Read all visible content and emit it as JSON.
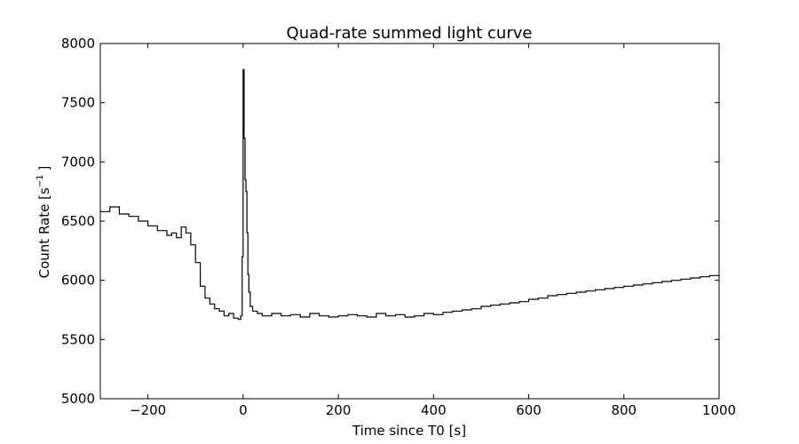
{
  "chart_data": {
    "type": "line",
    "title": "Quad-rate summed light curve",
    "xlabel": "Time since T0 [s]",
    "ylabel_prefix": "Count Rate [s",
    "ylabel_exponent": "−1",
    "ylabel_suffix": "]",
    "xlim": [
      -300,
      1000
    ],
    "ylim": [
      5000,
      8000
    ],
    "x_ticks": [
      -200,
      0,
      200,
      400,
      600,
      800,
      1000
    ],
    "x_tick_labels": [
      "−200",
      "0",
      "200",
      "400",
      "600",
      "800",
      "1000"
    ],
    "y_ticks": [
      5000,
      5500,
      6000,
      6500,
      7000,
      7500,
      8000
    ],
    "y_tick_labels": [
      "5000",
      "5500",
      "6000",
      "6500",
      "7000",
      "7500",
      "8000"
    ],
    "grid": false,
    "legend": "none",
    "line_color": "#000000",
    "series": [
      {
        "style": "steps",
        "x": [
          -300,
          -280,
          -260,
          -240,
          -220,
          -200,
          -180,
          -160,
          -150,
          -140,
          -130,
          -120,
          -110,
          -100,
          -90,
          -80,
          -70,
          -60,
          -50,
          -40,
          -30,
          -20,
          -10,
          -5,
          -2,
          0,
          2,
          4,
          6,
          8,
          10,
          12,
          15,
          20,
          30,
          40,
          60,
          80,
          100,
          120,
          140,
          160,
          180,
          200,
          220,
          240,
          260,
          280,
          300,
          320,
          340,
          360,
          380,
          400,
          420,
          440,
          460,
          480,
          500,
          520,
          540,
          560,
          580,
          600,
          620,
          640,
          660,
          680,
          700,
          720,
          740,
          760,
          780,
          800,
          820,
          840,
          860,
          880,
          900,
          920,
          940,
          960,
          980,
          1000
        ],
        "y": [
          6580,
          6620,
          6560,
          6540,
          6500,
          6460,
          6420,
          6380,
          6400,
          6360,
          6450,
          6400,
          6300,
          6150,
          5950,
          5850,
          5800,
          5760,
          5740,
          5700,
          5720,
          5680,
          5670,
          5700,
          6200,
          7780,
          7200,
          6850,
          6750,
          6400,
          6050,
          5900,
          5780,
          5740,
          5720,
          5700,
          5720,
          5700,
          5710,
          5690,
          5720,
          5700,
          5690,
          5700,
          5710,
          5700,
          5690,
          5720,
          5700,
          5710,
          5690,
          5700,
          5720,
          5710,
          5730,
          5740,
          5750,
          5760,
          5780,
          5790,
          5800,
          5810,
          5820,
          5840,
          5850,
          5870,
          5880,
          5890,
          5900,
          5910,
          5920,
          5930,
          5940,
          5950,
          5960,
          5970,
          5980,
          5990,
          6000,
          6010,
          6020,
          6030,
          6040,
          6050
        ]
      }
    ]
  }
}
